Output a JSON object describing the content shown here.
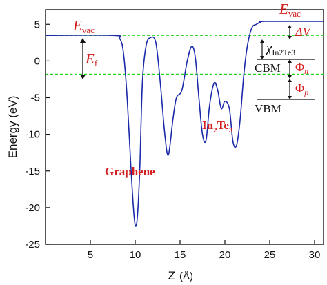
{
  "chart_data": {
    "type": "line",
    "xlabel": "Z",
    "xunit": "(Å)",
    "ylabel": "Energy (eV)",
    "xlim": [
      0,
      31
    ],
    "ylim": [
      -25,
      7
    ],
    "xticks": [
      5,
      10,
      15,
      20,
      25,
      30
    ],
    "yticks": [
      5,
      0,
      -5,
      -10,
      -15,
      -20,
      -25
    ],
    "line_color": "#1a2aa8",
    "guide_color": "#22d422",
    "annotation_color": "#d42020",
    "x": [
      0,
      7.5,
      8.3,
      8.7,
      9.1,
      9.5,
      9.9,
      10.2,
      10.5,
      10.8,
      11.2,
      11.7,
      12.3,
      12.8,
      13.3,
      13.7,
      14.2,
      14.6,
      15.2,
      15.8,
      16.3,
      16.7,
      17.1,
      17.5,
      17.9,
      18.3,
      18.8,
      19.2,
      19.6,
      20.0,
      20.5,
      20.9,
      21.3,
      21.7,
      22.1,
      22.5,
      23.0,
      23.5,
      24.0,
      24.5,
      31
    ],
    "y": [
      3.5,
      3.5,
      3.0,
      1.0,
      -5.0,
      -14.0,
      -21.5,
      -21.8,
      -15.0,
      -3.0,
      2.0,
      3.2,
      2.5,
      -3.0,
      -10.0,
      -12.8,
      -8.0,
      -5.0,
      -4.0,
      0.0,
      2.0,
      0.5,
      -5.0,
      -10.0,
      -10.8,
      -6.0,
      -3.0,
      -4.0,
      -6.5,
      -5.5,
      -6.5,
      -11.0,
      -11.5,
      -8.0,
      -2.0,
      2.0,
      4.5,
      5.0,
      5.3,
      5.4,
      5.4
    ],
    "reference_lines": [
      {
        "label_main": "E",
        "label_sub": "vac",
        "y": 3.5
      },
      {
        "label_main": "E",
        "label_sub": "f",
        "y": -1.8
      },
      {
        "label_main": "E",
        "label_sub": "vac",
        "y": 5.4
      }
    ],
    "annotations": {
      "graphene": "Graphene",
      "in2te3_a": "In",
      "in2te3_sub2": "2",
      "in2te3_b": "Te",
      "in2te3_sub3": "3",
      "delta_v": "ΔV",
      "chi_main": "χ",
      "chi_sub": "In2Te3",
      "cbm": "CBM",
      "phi_n_main": "Φ",
      "phi_n_sub": "n",
      "phi_p_main": "Φ",
      "phi_p_sub": "p",
      "vbm": "VBM"
    }
  }
}
